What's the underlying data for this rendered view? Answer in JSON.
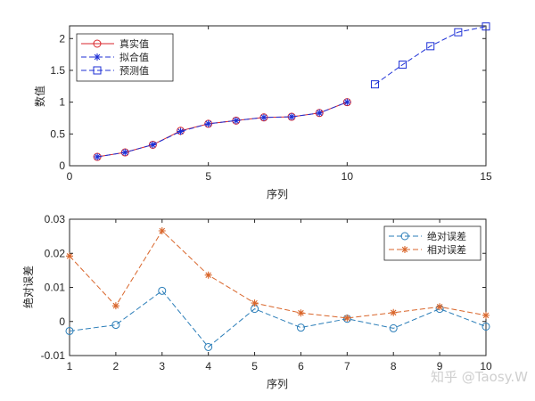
{
  "chart_data": [
    {
      "type": "line",
      "xlabel": "序列",
      "ylabel": "数值",
      "xlim": [
        0,
        15
      ],
      "ylim": [
        0,
        2.2
      ],
      "xticks": [
        "0",
        "5",
        "10",
        "15"
      ],
      "yticks": [
        "0",
        "0.5",
        "1",
        "1.5",
        "2"
      ],
      "legend_position": "top-left",
      "series": [
        {
          "name": "真实值",
          "color": "#d9262b",
          "line": "solid",
          "marker": "circle",
          "x": [
            1,
            2,
            3,
            4,
            5,
            6,
            7,
            8,
            9,
            10
          ],
          "y": [
            0.14,
            0.21,
            0.33,
            0.55,
            0.66,
            0.71,
            0.76,
            0.77,
            0.83,
            1.0
          ]
        },
        {
          "name": "拟合值",
          "color": "#1c2fd6",
          "line": "dashed",
          "marker": "asterisk",
          "x": [
            1,
            2,
            3,
            4,
            5,
            6,
            7,
            8,
            9,
            10
          ],
          "y": [
            0.14,
            0.21,
            0.33,
            0.54,
            0.66,
            0.71,
            0.76,
            0.77,
            0.83,
            1.0
          ]
        },
        {
          "name": "预测值",
          "color": "#1c2fd6",
          "line": "dashed",
          "marker": "square",
          "x": [
            11,
            12,
            13,
            14,
            15
          ],
          "y": [
            1.28,
            1.59,
            1.88,
            2.1,
            2.19
          ]
        }
      ]
    },
    {
      "type": "line",
      "xlabel": "序列",
      "ylabel": "绝对误差",
      "xlim": [
        1,
        10
      ],
      "ylim": [
        -0.01,
        0.03
      ],
      "xticks": [
        "1",
        "2",
        "3",
        "4",
        "5",
        "6",
        "7",
        "8",
        "9",
        "10"
      ],
      "yticks": [
        "-0.01",
        "0",
        "0.01",
        "0.02",
        "0.03"
      ],
      "legend_position": "top-right",
      "series": [
        {
          "name": "绝对误差",
          "color": "#2a7db8",
          "line": "dashed",
          "marker": "circle",
          "x": [
            1,
            2,
            3,
            4,
            5,
            6,
            7,
            8,
            9,
            10
          ],
          "y": [
            -0.0028,
            -0.001,
            0.009,
            -0.0075,
            0.0037,
            -0.0018,
            0.0008,
            -0.002,
            0.0037,
            -0.0015
          ]
        },
        {
          "name": "相对误差",
          "color": "#d9662b",
          "line": "dashed",
          "marker": "asterisk",
          "x": [
            1,
            2,
            3,
            4,
            5,
            6,
            7,
            8,
            9,
            10
          ],
          "y": [
            0.0192,
            0.0046,
            0.0266,
            0.0136,
            0.0054,
            0.0025,
            0.001,
            0.0026,
            0.0043,
            0.0018
          ]
        }
      ]
    }
  ],
  "watermark": "知乎 @Taosy.W"
}
